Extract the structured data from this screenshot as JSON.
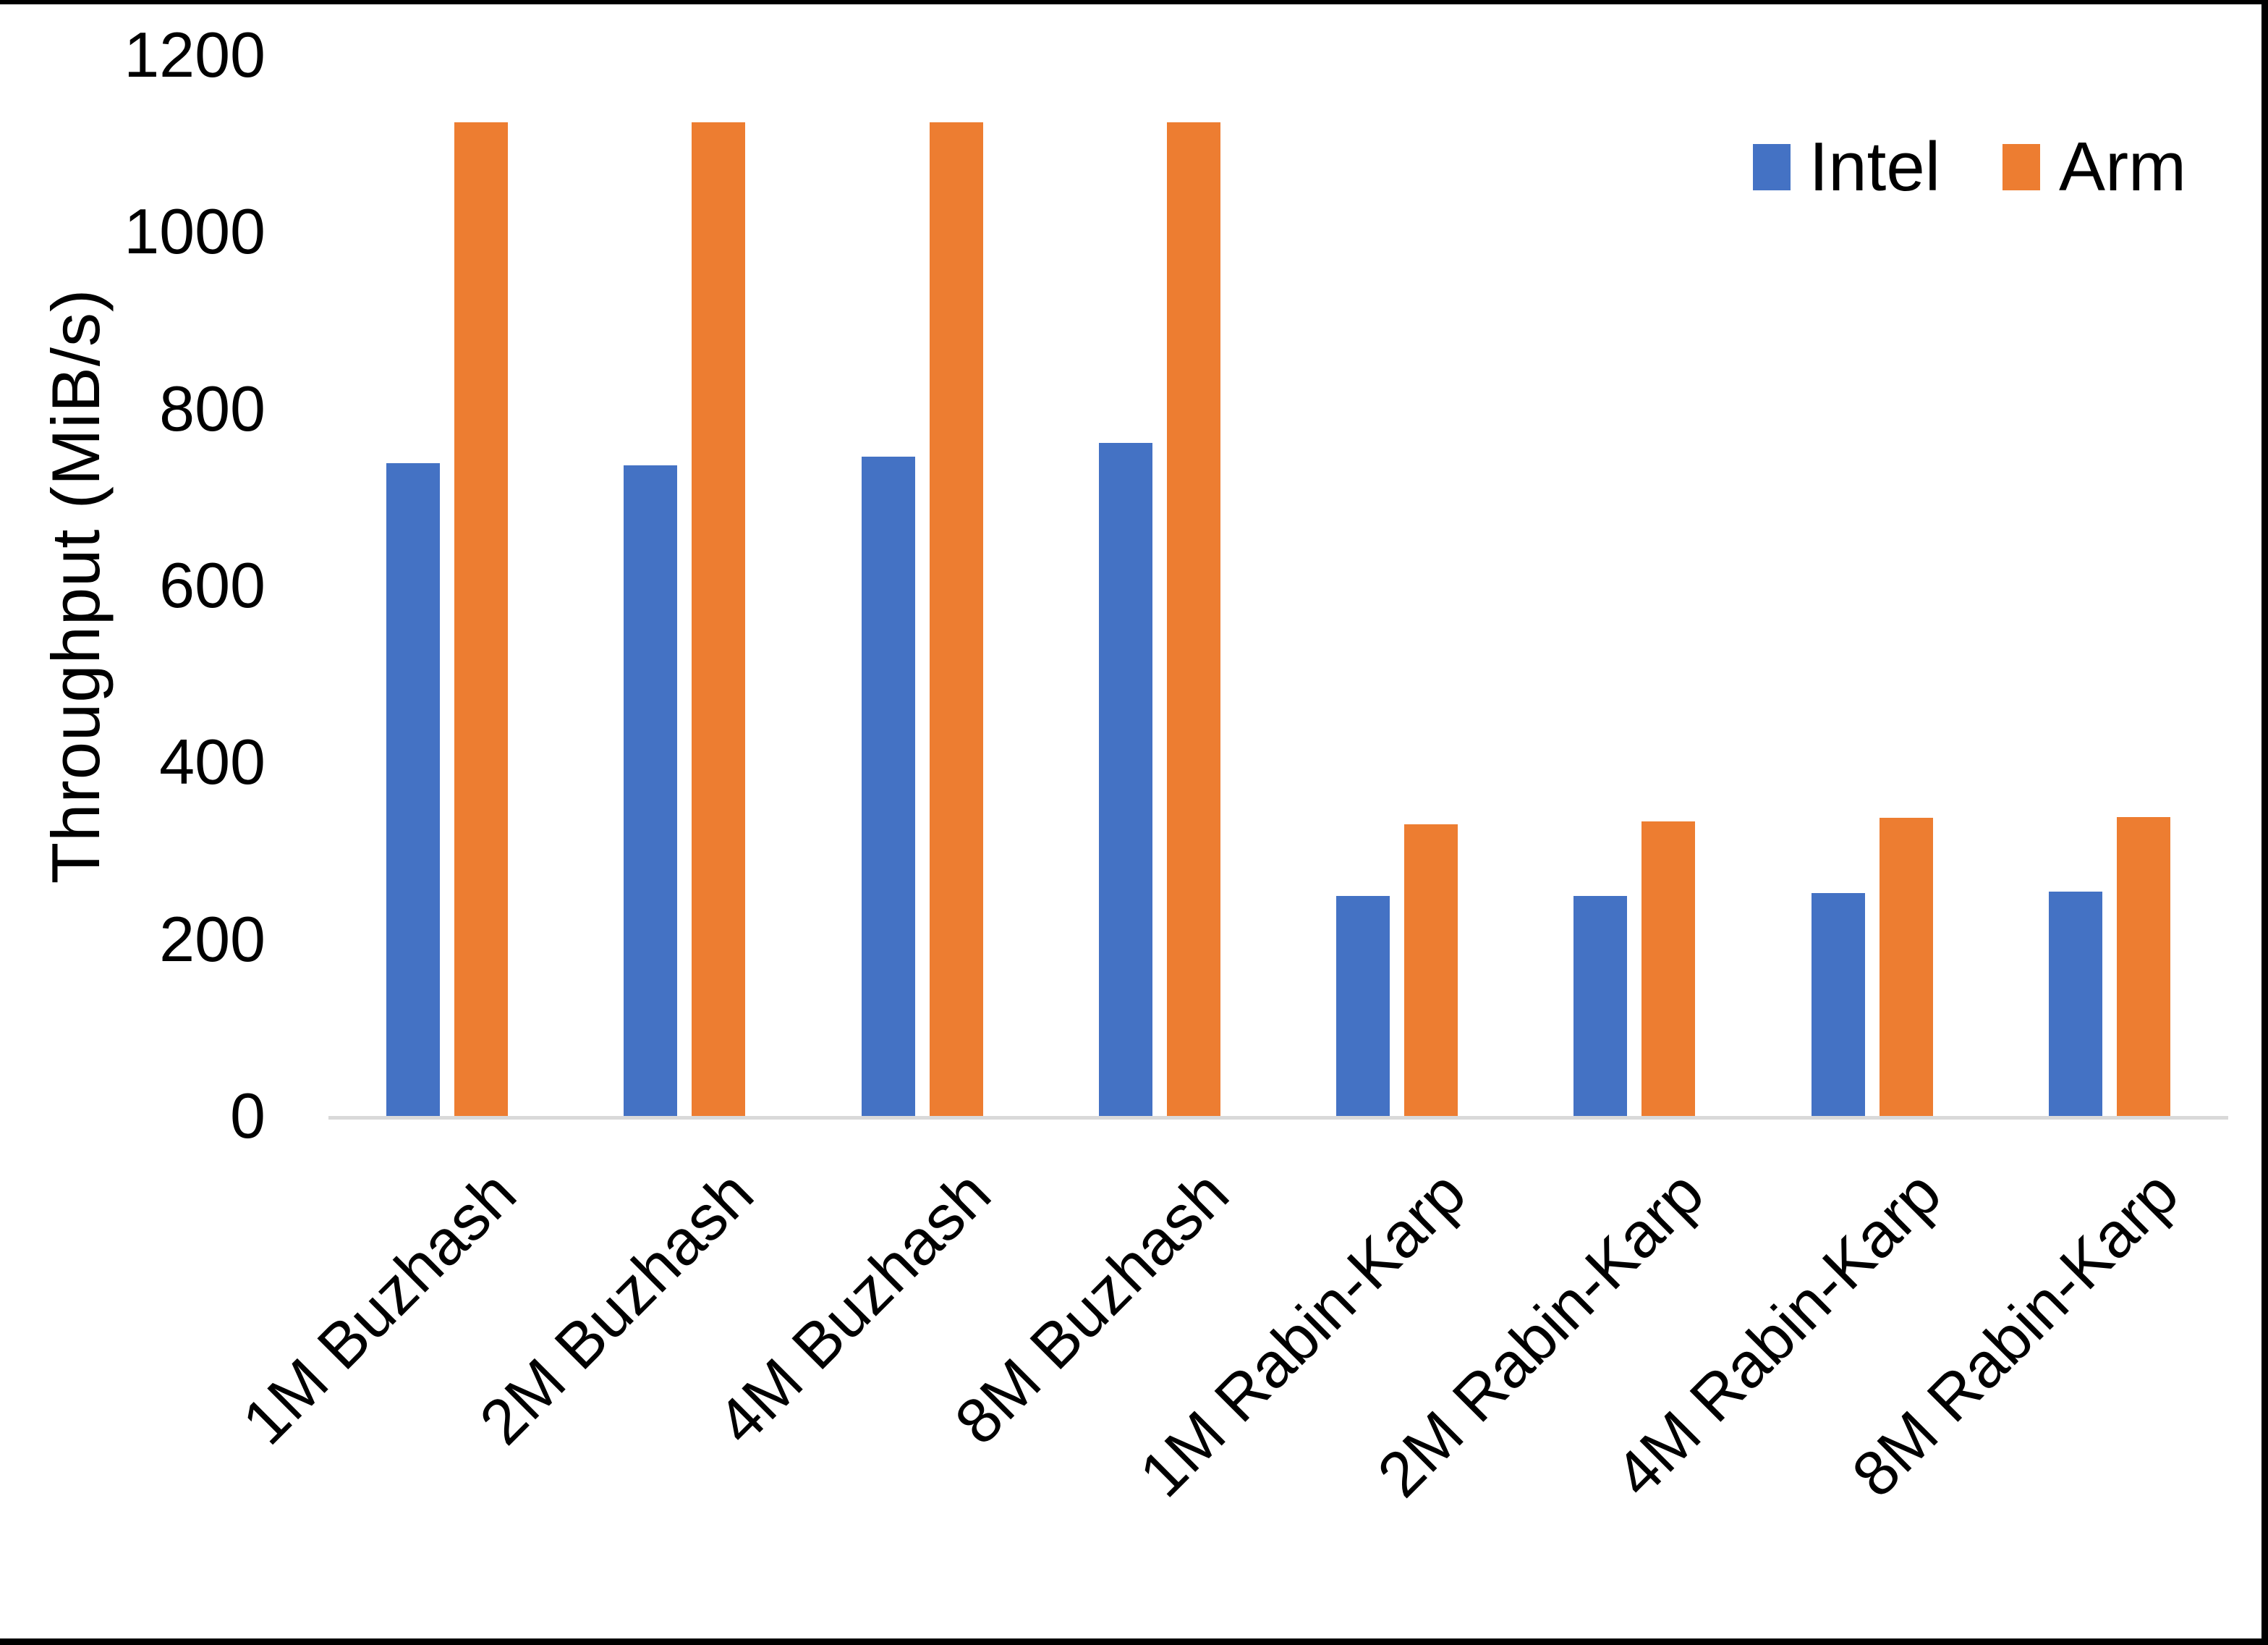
{
  "chart_data": {
    "type": "bar",
    "title": "",
    "xlabel": "",
    "ylabel": "Throughput (MiB/s)",
    "ylim": [
      0,
      1200
    ],
    "yticks": [
      0,
      200,
      400,
      600,
      800,
      1000,
      1200
    ],
    "grid": false,
    "legend_position": "top-right",
    "categories": [
      "1M Buzhash",
      "2M Buzhash",
      "4M Buzhash",
      "8M Buzhash",
      "1M Rabin-Karp",
      "2M Rabin-Karp",
      "4M Rabin-Karp",
      "8M Rabin-Karp"
    ],
    "series": [
      {
        "name": "Intel",
        "color": "#4472C4",
        "values": [
          738,
          736,
          746,
          761,
          249,
          249,
          252,
          254
        ]
      },
      {
        "name": "Arm",
        "color": "#ED7D31",
        "values": [
          1124,
          1124,
          1124,
          1124,
          330,
          333,
          337,
          338
        ]
      }
    ],
    "axis_line_color": "#D9D9D9",
    "text_color": "#000000"
  },
  "legend": {
    "items": [
      {
        "label": "Intel",
        "color": "#4472C4"
      },
      {
        "label": "Arm",
        "color": "#ED7D31"
      }
    ]
  }
}
